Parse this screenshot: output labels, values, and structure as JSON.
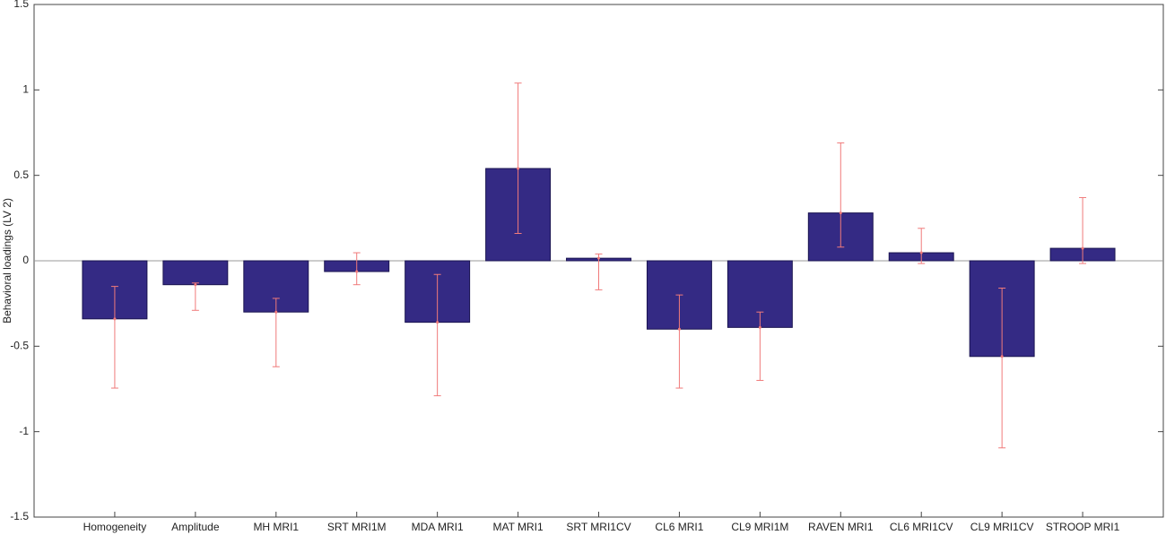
{
  "chart_data": {
    "type": "bar",
    "y_label": "Behavioral loadings (LV 2)",
    "categories": [
      "Homogeneity",
      "Amplitude",
      "MH MRI1",
      "SRT MRI1M",
      "MDA MRI1",
      "MAT MRI1",
      "SRT MRI1CV",
      "CL6 MRI1",
      "CL9 MRI1M",
      "RAVEN MRI1",
      "CL6 MRI1CV",
      "CL9 MRI1CV",
      "STROOP MRI1"
    ],
    "values": [
      -0.34,
      -0.14,
      -0.3,
      -0.063,
      -0.36,
      0.54,
      0.015,
      -0.4,
      -0.39,
      0.28,
      0.047,
      -0.56,
      0.073
    ],
    "error_lower": [
      -0.745,
      -0.29,
      -0.62,
      -0.14,
      -0.79,
      0.16,
      -0.17,
      -0.745,
      -0.7,
      0.08,
      -0.016,
      -1.095,
      -0.016
    ],
    "error_upper": [
      -0.15,
      -0.13,
      -0.22,
      0.047,
      -0.08,
      1.04,
      0.04,
      -0.2,
      -0.3,
      0.69,
      0.19,
      -0.16,
      0.37
    ],
    "color": "#342a84",
    "error_color": "#f07a7a",
    "ylim": [
      -1.5,
      1.5
    ],
    "yticks": [
      -1.5,
      -1,
      -0.5,
      0,
      0.5,
      1,
      1.5
    ]
  }
}
